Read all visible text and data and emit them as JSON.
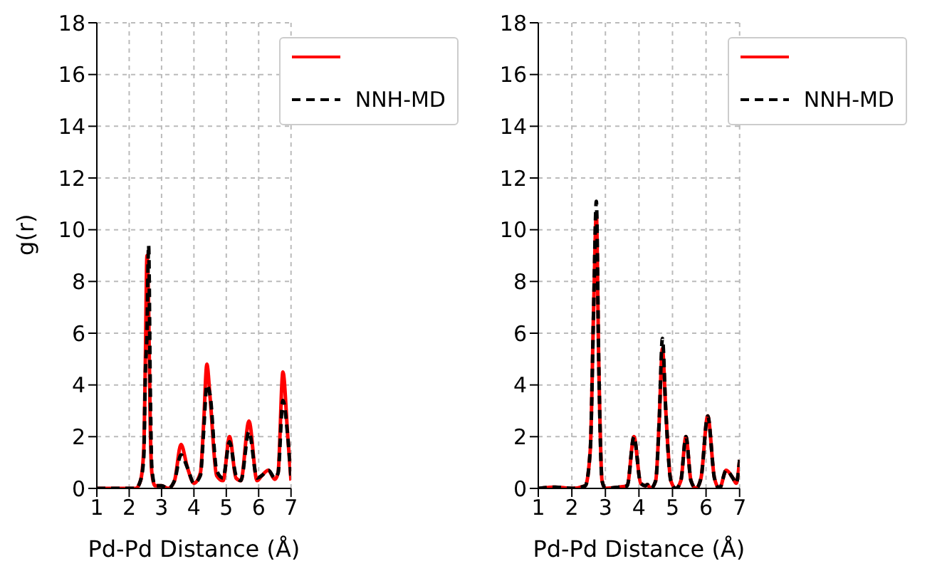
{
  "chart_data": [
    {
      "type": "line",
      "xlabel": "Pd-Pd Distance (Å)",
      "ylabel": "g(r)",
      "xlim": [
        1,
        7
      ],
      "xticks": [
        1,
        2,
        3,
        4,
        5,
        6,
        7
      ],
      "ylim": [
        0,
        18
      ],
      "yticks": [
        0,
        2,
        4,
        6,
        8,
        10,
        12,
        14,
        16,
        18
      ],
      "grid": true,
      "legend": "top right",
      "marker": "none",
      "x": [
        1,
        2.2,
        2.35,
        2.45,
        2.5,
        2.55,
        2.6,
        2.65,
        2.7,
        2.8,
        3.0,
        3.2,
        3.4,
        3.6,
        3.8,
        4.0,
        4.2,
        4.3,
        4.4,
        4.5,
        4.7,
        4.9,
        5.1,
        5.3,
        5.45,
        5.7,
        5.95,
        6.1,
        6.3,
        6.5,
        6.6,
        6.75,
        6.9,
        7
      ],
      "series": [
        {
          "color": "#ff0000",
          "line_style": "solid",
          "values": [
            0,
            0,
            0.3,
            1.5,
            5,
            9.0,
            7,
            2.5,
            0.6,
            0.1,
            0.1,
            0,
            0.3,
            1.7,
            0.8,
            0.2,
            0.6,
            2.5,
            4.8,
            3.5,
            0.5,
            0.3,
            2.0,
            0.4,
            0.3,
            2.6,
            0.3,
            0.5,
            0.7,
            0.35,
            0.6,
            4.5,
            2,
            0.3
          ]
        },
        {
          "name": "NNH-MD",
          "color": "#000000",
          "line_style": "dashed",
          "values": [
            0,
            0,
            0.3,
            1.2,
            4.5,
            6,
            9.4,
            4,
            0.8,
            0.1,
            0.1,
            0,
            0.3,
            1.3,
            0.8,
            0.2,
            0.5,
            2.2,
            4.0,
            3.6,
            0.7,
            0.4,
            1.8,
            0.5,
            0.3,
            2.2,
            0.4,
            0.5,
            0.7,
            0.4,
            0.6,
            3.4,
            2,
            0.4
          ]
        }
      ]
    },
    {
      "type": "line",
      "xlabel": "Pd-Pd Distance (Å)",
      "xlim": [
        1,
        7
      ],
      "xticks": [
        1,
        2,
        3,
        4,
        5,
        6,
        7
      ],
      "ylim": [
        0,
        18
      ],
      "yticks": [
        0,
        2,
        4,
        6,
        8,
        10,
        12,
        14,
        16,
        18
      ],
      "grid": true,
      "legend": "top right",
      "marker": "none",
      "x": [
        1,
        1.5,
        2.0,
        2.4,
        2.55,
        2.65,
        2.73,
        2.8,
        2.9,
        3.0,
        3.4,
        3.65,
        3.85,
        4.05,
        4.2,
        4.25,
        4.35,
        4.5,
        4.6,
        4.7,
        4.8,
        4.95,
        5.1,
        5.25,
        5.4,
        5.55,
        5.7,
        5.85,
        6.05,
        6.25,
        6.4,
        6.6,
        6.8,
        6.9,
        7
      ],
      "series": [
        {
          "color": "#ff0000",
          "line_style": "solid",
          "values": [
            0,
            0.05,
            0,
            0.1,
            1.5,
            7,
            10.6,
            5,
            0.3,
            0,
            0.05,
            0.1,
            2.0,
            0.2,
            0.1,
            0.15,
            0,
            0.3,
            2.5,
            5.4,
            3,
            0.3,
            0,
            0.3,
            2.0,
            0.3,
            0,
            0.4,
            2.8,
            0.4,
            0,
            0.7,
            0.4,
            0.2,
            1.1
          ]
        },
        {
          "name": "NNH-MD",
          "color": "#000000",
          "line_style": "dashed",
          "values": [
            0,
            0.05,
            0,
            0.1,
            1.5,
            7,
            11.1,
            5,
            0.3,
            0,
            0.05,
            0.1,
            2.0,
            0.2,
            0.1,
            0.15,
            0,
            0.3,
            2.5,
            5.8,
            3,
            0.3,
            0,
            0.3,
            2.0,
            0.3,
            0,
            0.4,
            2.8,
            0.4,
            0,
            0.7,
            0.4,
            0.2,
            1.1
          ]
        }
      ]
    }
  ]
}
